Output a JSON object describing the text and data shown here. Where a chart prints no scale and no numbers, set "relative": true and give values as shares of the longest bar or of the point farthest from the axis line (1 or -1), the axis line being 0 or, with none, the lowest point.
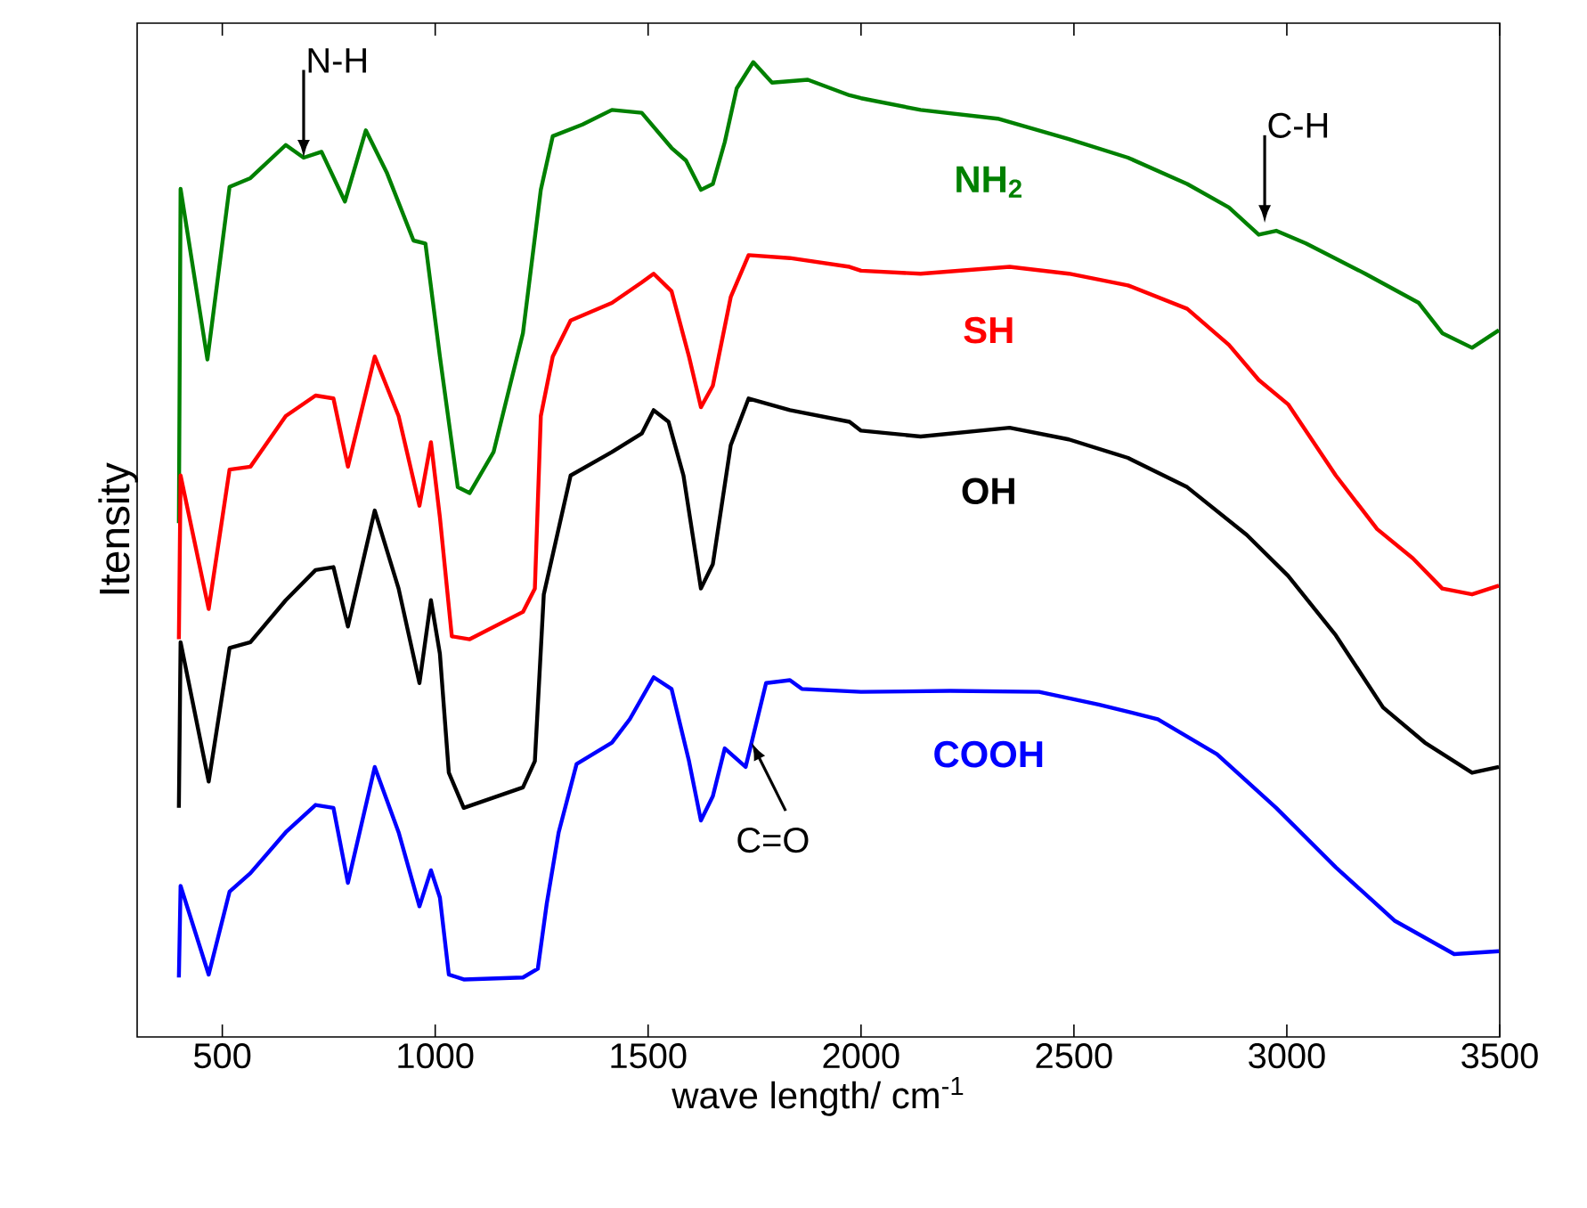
{
  "chart_data": {
    "type": "line",
    "relative": true,
    "xlabel": "wave length/ cm$^{-1}$",
    "ylabel": "Itensity",
    "xlim": [
      300,
      3500
    ],
    "xticks": [
      500,
      1000,
      1500,
      2000,
      2500,
      3000,
      3500
    ],
    "marker": "none",
    "line_style": "solid",
    "series": [
      {
        "name": "NH$_{2}$",
        "color": "#008000",
        "x": [
          398,
          402,
          465,
          517,
          566,
          649,
          691,
          733,
          788,
          837,
          886,
          949,
          977,
          1011,
          1053,
          1081,
          1137,
          1206,
          1248,
          1276,
          1346,
          1415,
          1485,
          1555,
          1589,
          1624,
          1652,
          1680,
          1708,
          1747,
          1791,
          1875,
          1973,
          2000,
          2140,
          2321,
          2488,
          2627,
          2766,
          2864,
          2934,
          2975,
          3045,
          3184,
          3310,
          3365,
          3435,
          3498
        ],
        "values": [
          0.527,
          0.87,
          0.695,
          0.872,
          0.881,
          0.915,
          0.902,
          0.908,
          0.857,
          0.93,
          0.887,
          0.817,
          0.814,
          0.698,
          0.564,
          0.558,
          0.6,
          0.722,
          0.869,
          0.924,
          0.936,
          0.951,
          0.948,
          0.912,
          0.899,
          0.869,
          0.875,
          0.918,
          0.973,
          1,
          0.979,
          0.982,
          0.966,
          0.963,
          0.951,
          0.942,
          0.921,
          0.902,
          0.875,
          0.851,
          0.823,
          0.827,
          0.814,
          0.783,
          0.753,
          0.722,
          0.707,
          0.725
        ]
      },
      {
        "name": "SH",
        "color": "#ff0000",
        "x": [
          398,
          402,
          468,
          517,
          566,
          649,
          719,
          761,
          795,
          858,
          914,
          963,
          990,
          1011,
          1039,
          1081,
          1206,
          1234,
          1248,
          1276,
          1318,
          1415,
          1485,
          1513,
          1555,
          1596,
          1624,
          1652,
          1694,
          1736,
          1833,
          1973,
          2000,
          2140,
          2349,
          2488,
          2627,
          2766,
          2864,
          2934,
          3003,
          3115,
          3212,
          3296,
          3365,
          3435,
          3498
        ],
        "values": [
          0.408,
          0.576,
          0.439,
          0.582,
          0.585,
          0.637,
          0.658,
          0.655,
          0.585,
          0.698,
          0.637,
          0.545,
          0.61,
          0.533,
          0.411,
          0.408,
          0.436,
          0.46,
          0.637,
          0.698,
          0.735,
          0.753,
          0.774,
          0.783,
          0.765,
          0.698,
          0.646,
          0.668,
          0.759,
          0.802,
          0.799,
          0.79,
          0.786,
          0.783,
          0.79,
          0.783,
          0.771,
          0.747,
          0.71,
          0.674,
          0.649,
          0.576,
          0.521,
          0.491,
          0.46,
          0.454,
          0.463
        ]
      },
      {
        "name": "OH",
        "color": "#000000",
        "x": [
          398,
          402,
          468,
          517,
          566,
          649,
          719,
          761,
          795,
          858,
          914,
          963,
          990,
          1011,
          1032,
          1067,
          1206,
          1234,
          1255,
          1318,
          1415,
          1485,
          1513,
          1548,
          1583,
          1624,
          1652,
          1694,
          1736,
          1833,
          1973,
          2000,
          2140,
          2349,
          2488,
          2627,
          2766,
          2906,
          3003,
          3115,
          3226,
          3324,
          3435,
          3498
        ],
        "values": [
          0.235,
          0.405,
          0.262,
          0.399,
          0.405,
          0.448,
          0.479,
          0.482,
          0.421,
          0.54,
          0.46,
          0.363,
          0.448,
          0.393,
          0.271,
          0.235,
          0.256,
          0.283,
          0.454,
          0.576,
          0.6,
          0.619,
          0.643,
          0.631,
          0.576,
          0.46,
          0.485,
          0.607,
          0.655,
          0.643,
          0.631,
          0.622,
          0.616,
          0.625,
          0.613,
          0.594,
          0.564,
          0.515,
          0.473,
          0.412,
          0.338,
          0.302,
          0.271,
          0.277
        ]
      },
      {
        "name": "COOH",
        "color": "#0000ff",
        "x": [
          398,
          402,
          468,
          517,
          566,
          649,
          719,
          761,
          795,
          858,
          914,
          963,
          990,
          1011,
          1032,
          1067,
          1206,
          1241,
          1262,
          1290,
          1332,
          1415,
          1457,
          1513,
          1555,
          1596,
          1624,
          1652,
          1680,
          1729,
          1743,
          1777,
          1833,
          1861,
          2000,
          2209,
          2418,
          2558,
          2697,
          2836,
          2975,
          3115,
          3254,
          3393,
          3498
        ],
        "values": [
          0.061,
          0.155,
          0.064,
          0.149,
          0.168,
          0.21,
          0.238,
          0.235,
          0.158,
          0.277,
          0.21,
          0.134,
          0.171,
          0.143,
          0.064,
          0.059,
          0.061,
          0.07,
          0.137,
          0.21,
          0.28,
          0.302,
          0.326,
          0.369,
          0.357,
          0.283,
          0.222,
          0.247,
          0.296,
          0.277,
          0.302,
          0.363,
          0.366,
          0.357,
          0.354,
          0.355,
          0.354,
          0.341,
          0.326,
          0.29,
          0.235,
          0.174,
          0.119,
          0.085,
          0.088
        ]
      }
    ],
    "annotations": [
      {
        "text": "N-H",
        "x": 691,
        "y": 0.902
      },
      {
        "text": "C-H",
        "x": 2948,
        "y": 0.835
      },
      {
        "text": "C=O",
        "x": 1743,
        "y": 0.302
      }
    ]
  }
}
